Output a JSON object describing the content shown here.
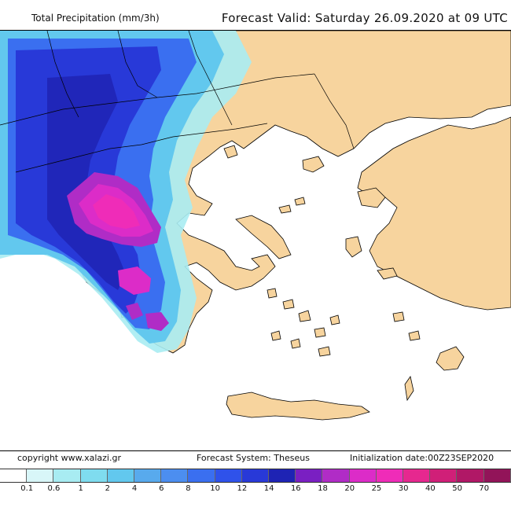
{
  "header": {
    "field_label": "Total Precipitation (mm/3h)",
    "forecast_valid": "Forecast Valid:  Saturday 26.09.2020 at 09 UTC"
  },
  "footer": {
    "copyright": "copyright www.xalazi.gr",
    "forecast_system": "Forecast System: Theseus",
    "initialization": "Initialization date:00Z23SEP2020"
  },
  "legend": {
    "colors": [
      "#ffffff",
      "#d8f6f8",
      "#a8ecf2",
      "#7fdcef",
      "#62c8ee",
      "#58aaed",
      "#4c8ef0",
      "#3a6ff0",
      "#2f52ea",
      "#2839d8",
      "#1e23b4",
      "#7a1fc2",
      "#b02cc6",
      "#dc2cc8",
      "#ef2cb8",
      "#e6288f",
      "#d01f78",
      "#b01866",
      "#921459"
    ],
    "labels": [
      "0.1",
      "0.6",
      "1",
      "2",
      "4",
      "6",
      "8",
      "10",
      "12",
      "14",
      "16",
      "18",
      "20",
      "25",
      "30",
      "40",
      "50",
      "70"
    ]
  },
  "map": {
    "sea_color": "#ffffff",
    "land_color": "#f7d49e",
    "border_color": "#000000"
  }
}
